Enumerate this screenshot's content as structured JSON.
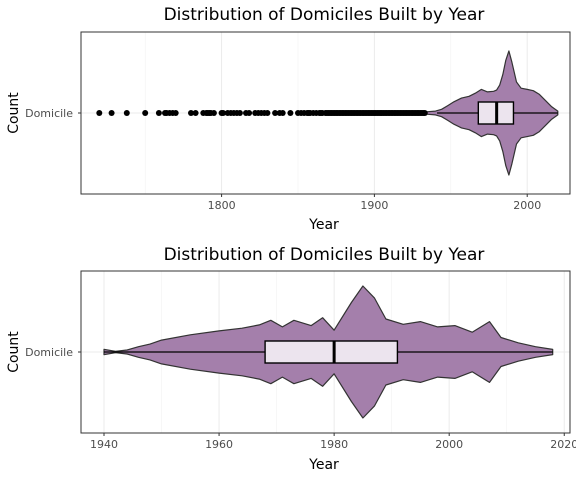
{
  "chart_data": [
    {
      "type": "violin+boxplot",
      "title": "Distribution of Domiciles Built by Year",
      "xlabel": "Year",
      "ylabel": "Count",
      "category": "Domicile",
      "xlim": [
        1708,
        2028
      ],
      "xticks": [
        1800,
        1900,
        2000
      ],
      "grid": true,
      "colors": {
        "violin": "#a17ba8",
        "box": "#ece4ee",
        "line": "#000000"
      },
      "box": {
        "lower_whisker": 1941,
        "q1": 1968,
        "median": 1980,
        "q3": 1991,
        "upper_whisker": 2020
      },
      "outliers": [
        1720,
        1728,
        1738,
        1750,
        1759,
        1763,
        1764,
        1766,
        1768,
        1770,
        1780,
        1783,
        1788,
        1790,
        1791,
        1792,
        1793,
        1795,
        1800,
        1801,
        1804,
        1806,
        1808,
        1810,
        1812,
        1816,
        1818,
        1822,
        1824,
        1826,
        1828,
        1830,
        1835,
        1838,
        1840,
        1845,
        1850,
        1852,
        1854,
        1856,
        1857,
        1858,
        1860,
        1862,
        1864,
        1865,
        1866,
        1868,
        1869,
        1870,
        1871,
        1872,
        1873,
        1874,
        1875,
        1876,
        1877,
        1878,
        1879,
        1880,
        1881,
        1882,
        1883,
        1884,
        1885,
        1886,
        1887,
        1888,
        1889,
        1890,
        1891,
        1892,
        1893,
        1894,
        1895,
        1896,
        1897,
        1898,
        1899,
        1900,
        1901,
        1902,
        1903,
        1904,
        1905,
        1906,
        1907,
        1908,
        1909,
        1910,
        1911,
        1912,
        1913,
        1914,
        1915,
        1916,
        1917,
        1918,
        1919,
        1920,
        1921,
        1922,
        1923,
        1924,
        1925,
        1926,
        1927,
        1928,
        1929,
        1930,
        1931,
        1932,
        1933
      ],
      "density": [
        [
          1934,
          0.02
        ],
        [
          1940,
          0.03
        ],
        [
          1944,
          0.06
        ],
        [
          1948,
          0.12
        ],
        [
          1952,
          0.18
        ],
        [
          1957,
          0.24
        ],
        [
          1962,
          0.27
        ],
        [
          1966,
          0.32
        ],
        [
          1970,
          0.38
        ],
        [
          1974,
          0.34
        ],
        [
          1978,
          0.35
        ],
        [
          1980,
          0.37
        ],
        [
          1982,
          0.45
        ],
        [
          1984,
          0.62
        ],
        [
          1986,
          0.85
        ],
        [
          1988,
          1.0
        ],
        [
          1990,
          0.82
        ],
        [
          1993,
          0.5
        ],
        [
          1996,
          0.4
        ],
        [
          2000,
          0.38
        ],
        [
          2004,
          0.36
        ],
        [
          2008,
          0.3
        ],
        [
          2012,
          0.2
        ],
        [
          2016,
          0.1
        ],
        [
          2020,
          0.03
        ]
      ]
    },
    {
      "type": "violin+boxplot",
      "title": "Distribution of Domiciles Built by Year",
      "xlabel": "Year",
      "ylabel": "Count",
      "category": "Domicile",
      "xlim": [
        1936,
        2021
      ],
      "xticks": [
        1940,
        1960,
        1980,
        2000,
        2020
      ],
      "grid": true,
      "colors": {
        "violin": "#a17ba8",
        "box": "#ece4ee",
        "line": "#000000"
      },
      "box": {
        "lower_whisker": 1940,
        "q1": 1968,
        "median": 1980,
        "q3": 1991,
        "upper_whisker": 2018
      },
      "outliers": [],
      "density": [
        [
          1940,
          0.04
        ],
        [
          1942,
          0.01
        ],
        [
          1944,
          0.03
        ],
        [
          1946,
          0.08
        ],
        [
          1948,
          0.12
        ],
        [
          1950,
          0.18
        ],
        [
          1955,
          0.26
        ],
        [
          1960,
          0.32
        ],
        [
          1964,
          0.36
        ],
        [
          1967,
          0.41
        ],
        [
          1969,
          0.48
        ],
        [
          1971,
          0.38
        ],
        [
          1973,
          0.48
        ],
        [
          1976,
          0.4
        ],
        [
          1978,
          0.52
        ],
        [
          1980,
          0.33
        ],
        [
          1983,
          0.75
        ],
        [
          1985,
          1.0
        ],
        [
          1987,
          0.82
        ],
        [
          1989,
          0.5
        ],
        [
          1992,
          0.42
        ],
        [
          1995,
          0.46
        ],
        [
          1998,
          0.38
        ],
        [
          2001,
          0.4
        ],
        [
          2004,
          0.3
        ],
        [
          2007,
          0.46
        ],
        [
          2009,
          0.22
        ],
        [
          2012,
          0.14
        ],
        [
          2015,
          0.08
        ],
        [
          2018,
          0.04
        ]
      ]
    }
  ]
}
